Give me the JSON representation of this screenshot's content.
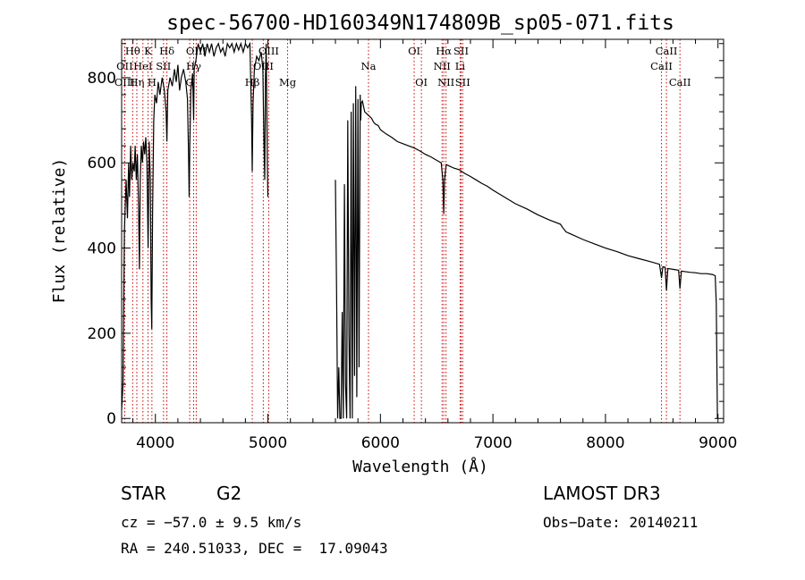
{
  "chart_data": {
    "type": "line",
    "title": "spec-56700-HD160349N174809B_sp05-071.fits",
    "xlabel": "Wavelength (Å)",
    "ylabel": "Flux (relative)",
    "xlim": [
      3700,
      9050
    ],
    "ylim": [
      -10,
      890
    ],
    "xticks": [
      4000,
      5000,
      6000,
      7000,
      8000,
      9000
    ],
    "yticks": [
      0,
      200,
      400,
      600,
      800
    ],
    "series": [
      {
        "name": "flux",
        "points": [
          [
            3700,
            20
          ],
          [
            3712,
            80
          ],
          [
            3725,
            440
          ],
          [
            3740,
            560
          ],
          [
            3752,
            470
          ],
          [
            3762,
            600
          ],
          [
            3770,
            520
          ],
          [
            3780,
            640
          ],
          [
            3790,
            560
          ],
          [
            3800,
            600
          ],
          [
            3812,
            580
          ],
          [
            3820,
            640
          ],
          [
            3830,
            560
          ],
          [
            3840,
            620
          ],
          [
            3850,
            500
          ],
          [
            3858,
            350
          ],
          [
            3865,
            560
          ],
          [
            3875,
            640
          ],
          [
            3885,
            600
          ],
          [
            3895,
            650
          ],
          [
            3905,
            620
          ],
          [
            3915,
            660
          ],
          [
            3925,
            600
          ],
          [
            3935,
            400
          ],
          [
            3945,
            650
          ],
          [
            3955,
            560
          ],
          [
            3962,
            280
          ],
          [
            3968,
            210
          ],
          [
            3975,
            480
          ],
          [
            3985,
            700
          ],
          [
            3995,
            760
          ],
          [
            4010,
            740
          ],
          [
            4025,
            790
          ],
          [
            4040,
            760
          ],
          [
            4060,
            800
          ],
          [
            4080,
            770
          ],
          [
            4095,
            720
          ],
          [
            4102,
            650
          ],
          [
            4110,
            770
          ],
          [
            4130,
            800
          ],
          [
            4150,
            780
          ],
          [
            4170,
            820
          ],
          [
            4185,
            790
          ],
          [
            4200,
            830
          ],
          [
            4215,
            770
          ],
          [
            4230,
            800
          ],
          [
            4250,
            820
          ],
          [
            4270,
            790
          ],
          [
            4285,
            750
          ],
          [
            4295,
            620
          ],
          [
            4300,
            520
          ],
          [
            4306,
            640
          ],
          [
            4315,
            770
          ],
          [
            4330,
            810
          ],
          [
            4340,
            700
          ],
          [
            4345,
            820
          ],
          [
            4360,
            840
          ],
          [
            4380,
            880
          ],
          [
            4400,
            860
          ],
          [
            4420,
            880
          ],
          [
            4440,
            850
          ],
          [
            4460,
            880
          ],
          [
            4480,
            860
          ],
          [
            4500,
            880
          ],
          [
            4520,
            850
          ],
          [
            4540,
            870
          ],
          [
            4560,
            880
          ],
          [
            4580,
            860
          ],
          [
            4600,
            870
          ],
          [
            4620,
            850
          ],
          [
            4640,
            880
          ],
          [
            4660,
            870
          ],
          [
            4680,
            880
          ],
          [
            4700,
            860
          ],
          [
            4720,
            880
          ],
          [
            4740,
            865
          ],
          [
            4760,
            880
          ],
          [
            4780,
            860
          ],
          [
            4800,
            880
          ],
          [
            4820,
            870
          ],
          [
            4840,
            880
          ],
          [
            4855,
            700
          ],
          [
            4861,
            580
          ],
          [
            4868,
            740
          ],
          [
            4880,
            820
          ],
          [
            4900,
            850
          ],
          [
            4920,
            840
          ],
          [
            4940,
            860
          ],
          [
            4955,
            820
          ],
          [
            4965,
            650
          ],
          [
            4972,
            560
          ],
          [
            4978,
            800
          ],
          [
            4985,
            880
          ],
          [
            4995,
            600
          ],
          [
            5000,
            520
          ],
          [
            5600,
            560
          ],
          [
            5610,
            300
          ],
          [
            5620,
            0
          ],
          [
            5630,
            120
          ],
          [
            5640,
            0
          ],
          [
            5650,
            0
          ],
          [
            5660,
            250
          ],
          [
            5670,
            0
          ],
          [
            5680,
            550
          ],
          [
            5690,
            80
          ],
          [
            5700,
            0
          ],
          [
            5710,
            700
          ],
          [
            5720,
            200
          ],
          [
            5730,
            0
          ],
          [
            5740,
            720
          ],
          [
            5750,
            0
          ],
          [
            5760,
            740
          ],
          [
            5770,
            100
          ],
          [
            5780,
            780
          ],
          [
            5790,
            50
          ],
          [
            5800,
            750
          ],
          [
            5810,
            120
          ],
          [
            5820,
            760
          ],
          [
            5825,
            700
          ],
          [
            5830,
            740
          ],
          [
            5840,
            745
          ],
          [
            5860,
            720
          ],
          [
            5880,
            715
          ],
          [
            5900,
            710
          ],
          [
            5920,
            705
          ],
          [
            5940,
            695
          ],
          [
            5960,
            690
          ],
          [
            5980,
            688
          ],
          [
            6000,
            678
          ],
          [
            6050,
            668
          ],
          [
            6100,
            660
          ],
          [
            6150,
            650
          ],
          [
            6200,
            645
          ],
          [
            6250,
            640
          ],
          [
            6300,
            635
          ],
          [
            6350,
            628
          ],
          [
            6400,
            620
          ],
          [
            6450,
            614
          ],
          [
            6500,
            606
          ],
          [
            6540,
            600
          ],
          [
            6555,
            560
          ],
          [
            6563,
            480
          ],
          [
            6570,
            560
          ],
          [
            6585,
            596
          ],
          [
            6600,
            594
          ],
          [
            6650,
            588
          ],
          [
            6700,
            584
          ],
          [
            6750,
            575
          ],
          [
            6800,
            568
          ],
          [
            6850,
            560
          ],
          [
            6900,
            552
          ],
          [
            6950,
            545
          ],
          [
            7000,
            536
          ],
          [
            7100,
            520
          ],
          [
            7200,
            504
          ],
          [
            7300,
            492
          ],
          [
            7400,
            478
          ],
          [
            7500,
            466
          ],
          [
            7600,
            456
          ],
          [
            7620,
            448
          ],
          [
            7650,
            438
          ],
          [
            7700,
            432
          ],
          [
            7800,
            420
          ],
          [
            7900,
            410
          ],
          [
            8000,
            400
          ],
          [
            8100,
            392
          ],
          [
            8200,
            382
          ],
          [
            8300,
            375
          ],
          [
            8400,
            368
          ],
          [
            8480,
            362
          ],
          [
            8498,
            330
          ],
          [
            8510,
            356
          ],
          [
            8530,
            355
          ],
          [
            8542,
            300
          ],
          [
            8555,
            352
          ],
          [
            8600,
            350
          ],
          [
            8650,
            348
          ],
          [
            8662,
            305
          ],
          [
            8675,
            346
          ],
          [
            8700,
            345
          ],
          [
            8750,
            343
          ],
          [
            8800,
            342
          ],
          [
            8850,
            340
          ],
          [
            8900,
            340
          ],
          [
            8950,
            338
          ],
          [
            8975,
            335
          ],
          [
            8985,
            270
          ],
          [
            8995,
            0
          ]
        ]
      }
    ],
    "lines": [
      {
        "label": "Hθ",
        "x": 3798,
        "row": 1
      },
      {
        "label": "OII",
        "x": 3727,
        "row": 2
      },
      {
        "label": "OIII",
        "x": 3727,
        "row": 3
      },
      {
        "label": "K",
        "x": 3934,
        "row": 1
      },
      {
        "label": "HeI",
        "x": 3889,
        "row": 2
      },
      {
        "label": "Hη",
        "x": 3835,
        "row": 3
      },
      {
        "label": "Hδ",
        "x": 4102,
        "row": 1
      },
      {
        "label": "SII",
        "x": 4072,
        "row": 2
      },
      {
        "label": "H",
        "x": 3969,
        "row": 3
      },
      {
        "label": "OIII",
        "x": 4363,
        "row": 1
      },
      {
        "label": "Hγ",
        "x": 4340,
        "row": 2
      },
      {
        "label": "G",
        "x": 4305,
        "row": 3
      },
      {
        "label": "OIII",
        "x": 5007,
        "row": 1
      },
      {
        "label": "OIII",
        "x": 4959,
        "row": 2
      },
      {
        "label": "Hβ",
        "x": 4861,
        "row": 3
      },
      {
        "label": "Mg",
        "x": 5175,
        "row": 3
      },
      {
        "label": "Na",
        "x": 5894,
        "row": 2
      },
      {
        "label": "OI",
        "x": 6300,
        "row": 1
      },
      {
        "label": "OI",
        "x": 6364,
        "row": 3
      },
      {
        "label": "Hα",
        "x": 6563,
        "row": 1
      },
      {
        "label": "NII",
        "x": 6548,
        "row": 2
      },
      {
        "label": "NII",
        "x": 6583,
        "row": 3
      },
      {
        "label": "SII",
        "x": 6717,
        "row": 1
      },
      {
        "label": "Li",
        "x": 6708,
        "row": 2
      },
      {
        "label": "SII",
        "x": 6731,
        "row": 3
      },
      {
        "label": "CaII",
        "x": 8542,
        "row": 1
      },
      {
        "label": "CaII",
        "x": 8498,
        "row": 2
      },
      {
        "label": "CaII",
        "x": 8662,
        "row": 3
      }
    ],
    "line_color": "#cc0000"
  },
  "info": {
    "object_class": "STAR",
    "subclass": "G2",
    "survey": "LAMOST DR3",
    "cz": "cz = −57.0 ± 9.5 km/s",
    "obs_date": "Obs−Date: 20140211",
    "coords": "RA = 240.51033, DEC =  17.09043"
  }
}
